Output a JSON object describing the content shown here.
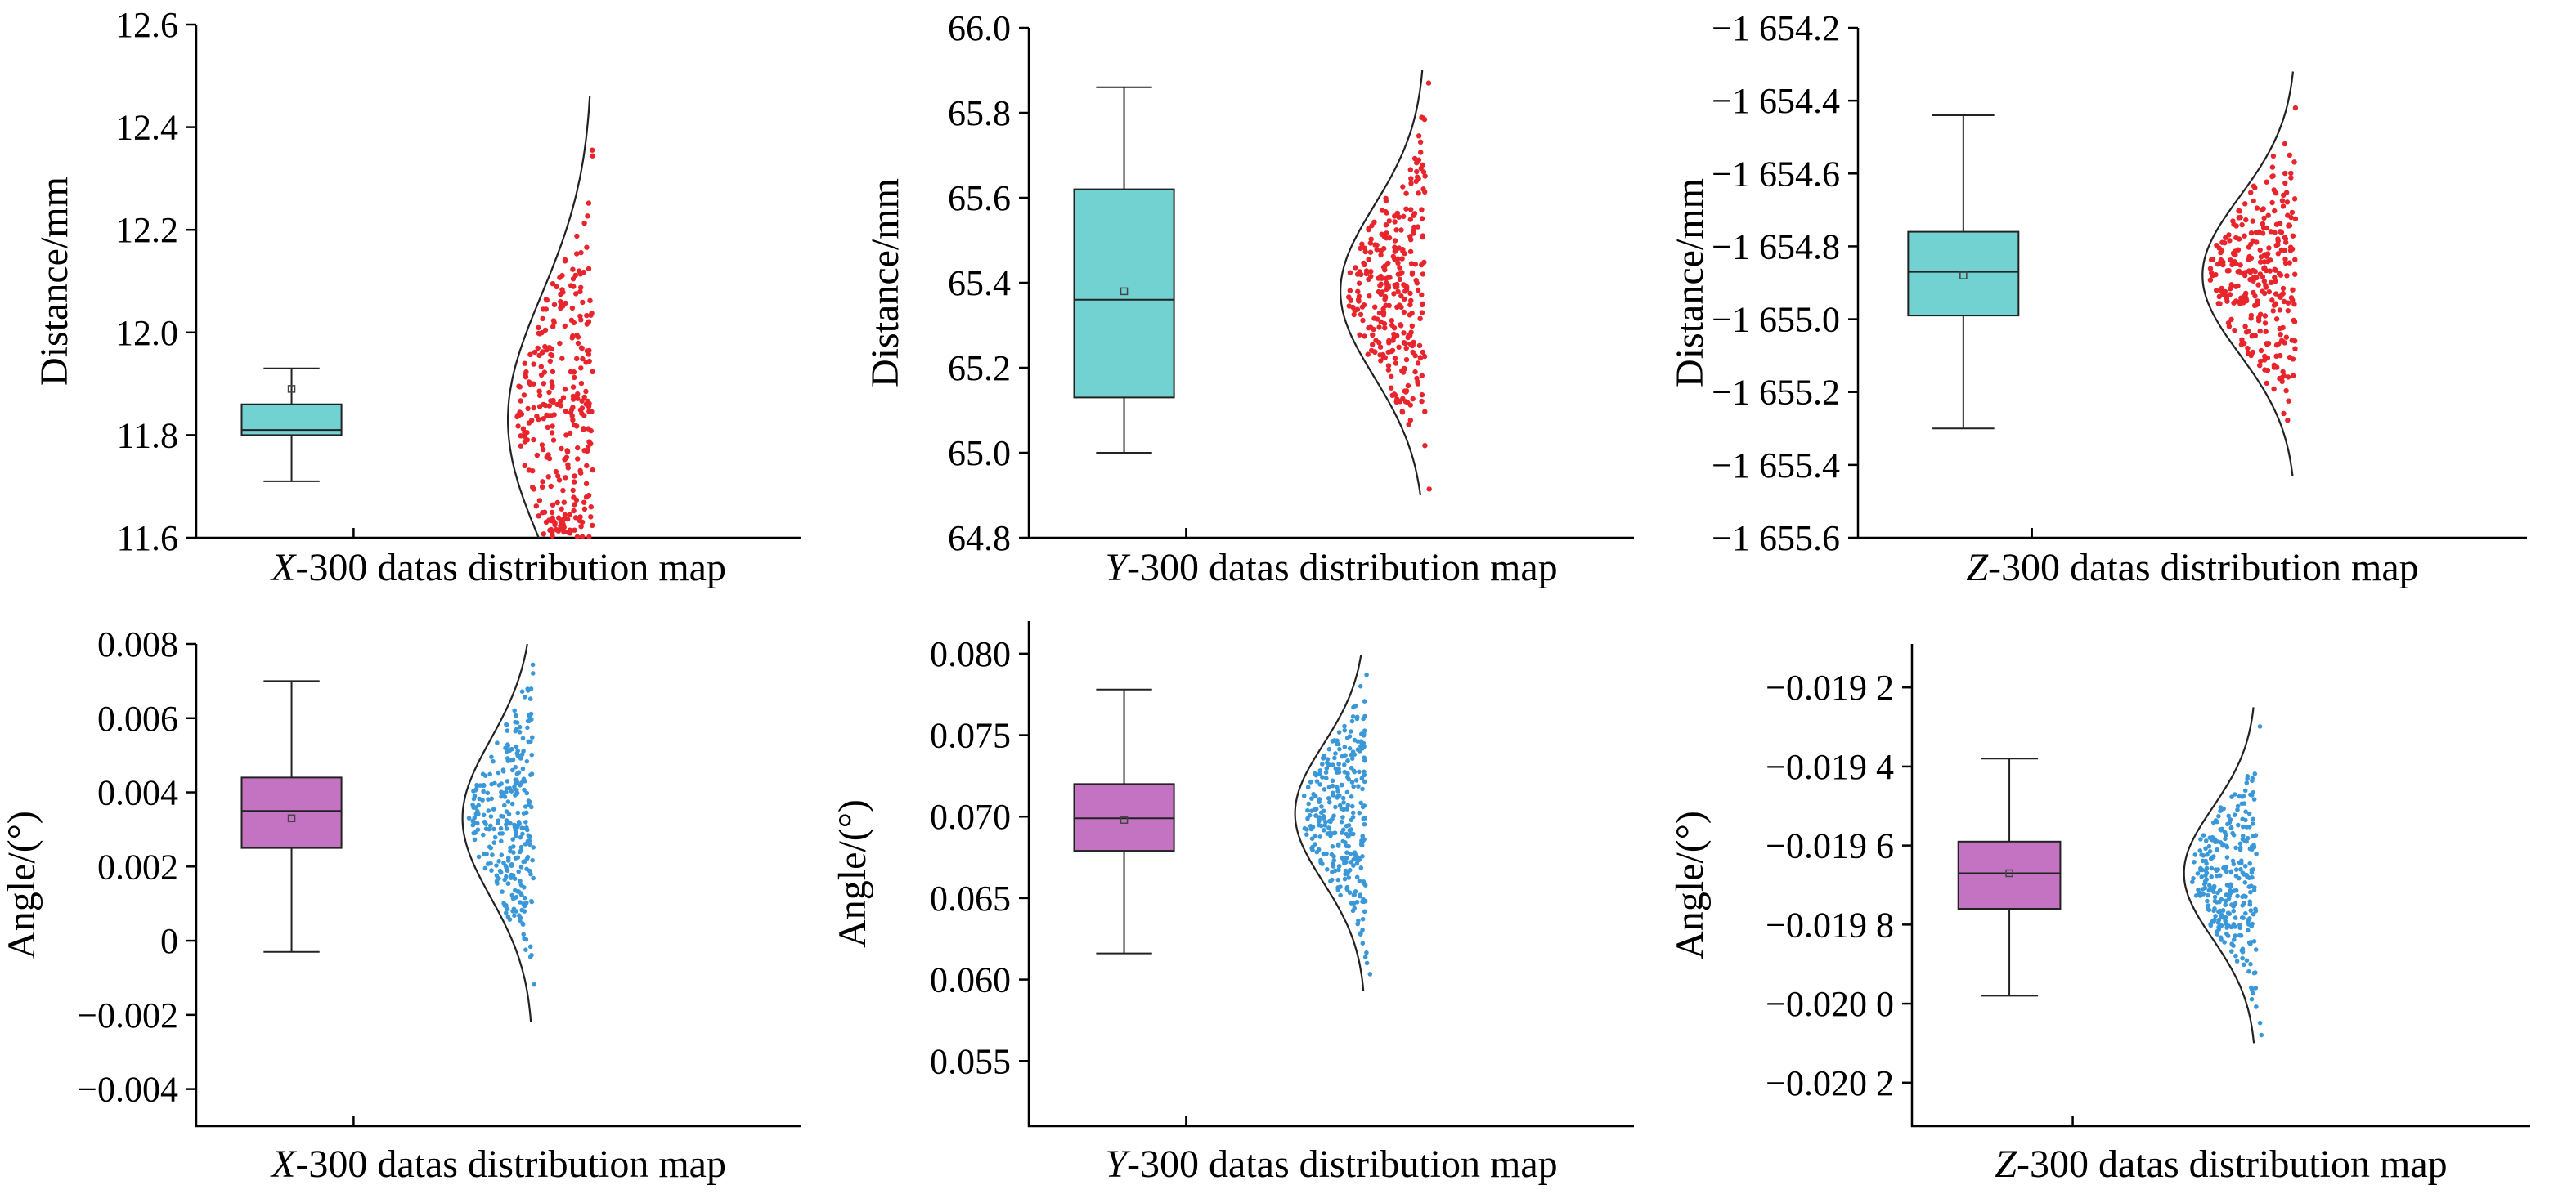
{
  "colors": {
    "distance_box_fill": "#72d1d1",
    "angle_box_fill": "#c373c1",
    "distance_points": "#e8242c",
    "angle_points": "#3b98d8",
    "axis": "#000000",
    "curve": "#222222"
  },
  "chart_data": [
    {
      "type": "box-violin-scatter",
      "caption_var": "X",
      "caption_rest": "-300 datas distribution map",
      "ylabel": "Distance/mm",
      "ylim": [
        11.6,
        12.6
      ],
      "yticks": [
        11.6,
        11.8,
        12.0,
        12.2,
        12.4,
        12.6
      ],
      "ytick_labels": [
        "11.6",
        "11.8",
        "12.0",
        "12.2",
        "12.4",
        "12.6"
      ],
      "box": {
        "whisker_low": 11.71,
        "q1": 11.8,
        "median": 11.81,
        "q3": 11.86,
        "whisker_high": 11.93,
        "mean": 11.89
      },
      "curve_range": [
        11.6,
        12.46
      ],
      "curve_mean": 11.83,
      "n_points": 300
    },
    {
      "type": "box-violin-scatter",
      "caption_var": "Y",
      "caption_rest": "-300 datas distribution map",
      "ylabel": "Distance/mm",
      "ylim": [
        64.8,
        66.0
      ],
      "yticks": [
        64.8,
        65.0,
        65.2,
        65.4,
        65.6,
        65.8,
        66.0
      ],
      "ytick_labels": [
        "64.8",
        "65.0",
        "65.2",
        "65.4",
        "65.6",
        "65.8",
        "66.0"
      ],
      "box": {
        "whisker_low": 65.0,
        "q1": 65.13,
        "median": 65.36,
        "q3": 65.62,
        "whisker_high": 65.86,
        "mean": 65.38
      },
      "curve_range": [
        64.9,
        65.9
      ],
      "curve_mean": 65.38,
      "n_points": 300
    },
    {
      "type": "box-violin-scatter",
      "caption_var": "Z",
      "caption_rest": "-300 datas distribution map",
      "ylabel": "Distance/mm",
      "ylim": [
        -1655.6,
        -1654.2
      ],
      "yticks": [
        -1655.6,
        -1655.4,
        -1655.2,
        -1655.0,
        -1654.8,
        -1654.6,
        -1654.4,
        -1654.2
      ],
      "ytick_labels": [
        "−1 655.6",
        "−1 655.4",
        "−1 655.2",
        "−1 655.0",
        "−1 654.8",
        "−1 654.6",
        "−1 654.4",
        "−1 654.2"
      ],
      "box": {
        "whisker_low": -1655.3,
        "q1": -1654.99,
        "median": -1654.87,
        "q3": -1654.76,
        "whisker_high": -1654.44,
        "mean": -1654.88
      },
      "curve_range": [
        -1655.43,
        -1654.32
      ],
      "curve_mean": -1654.88,
      "n_points": 300
    },
    {
      "type": "box-violin-scatter",
      "caption_var": "X",
      "caption_rest": "-300 datas distribution map",
      "ylabel": "Angle/(°)",
      "ylim": [
        -0.005,
        0.008
      ],
      "yticks": [
        -0.004,
        -0.002,
        0,
        0.002,
        0.004,
        0.006,
        0.008
      ],
      "ytick_labels": [
        "−0.004",
        "−0.002",
        "0",
        "0.002",
        "0.004",
        "0.006",
        "0.008"
      ],
      "box": {
        "whisker_low": -0.0003,
        "q1": 0.0025,
        "median": 0.0035,
        "q3": 0.0044,
        "whisker_high": 0.007,
        "mean": 0.0033
      },
      "curve_range": [
        -0.0022,
        0.008
      ],
      "curve_mean": 0.0033,
      "n_points": 300
    },
    {
      "type": "box-violin-scatter",
      "caption_var": "Y",
      "caption_rest": "-300 datas distribution map",
      "ylabel": "Angle/(°)",
      "ylim": [
        0.051,
        0.082
      ],
      "yticks": [
        0.055,
        0.06,
        0.065,
        0.07,
        0.075,
        0.08
      ],
      "ytick_labels": [
        "0.055",
        "0.060",
        "0.065",
        "0.070",
        "0.075",
        "0.080"
      ],
      "box": {
        "whisker_low": 0.0616,
        "q1": 0.0679,
        "median": 0.0699,
        "q3": 0.072,
        "whisker_high": 0.0778,
        "mean": 0.0698
      },
      "curve_range": [
        0.0593,
        0.0799
      ],
      "curve_mean": 0.0702,
      "n_points": 300
    },
    {
      "type": "box-violin-scatter",
      "caption_var": "Z",
      "caption_rest": "-300 datas distribution map",
      "ylabel": "Angle/(°)",
      "ylim": [
        -0.02031,
        -0.01909
      ],
      "yticks": [
        -0.0202,
        -0.02,
        -0.0198,
        -0.0196,
        -0.0194,
        -0.0192
      ],
      "ytick_labels": [
        "−0.020 2",
        "−0.020 0",
        "−0.019 8",
        "−0.019 6",
        "−0.019 4",
        "−0.019 2"
      ],
      "box": {
        "whisker_low": -0.01998,
        "q1": -0.01976,
        "median": -0.01967,
        "q3": -0.01959,
        "whisker_high": -0.01938,
        "mean": -0.01967
      },
      "curve_range": [
        -0.0201,
        -0.01925
      ],
      "curve_mean": -0.01967,
      "n_points": 300
    }
  ]
}
